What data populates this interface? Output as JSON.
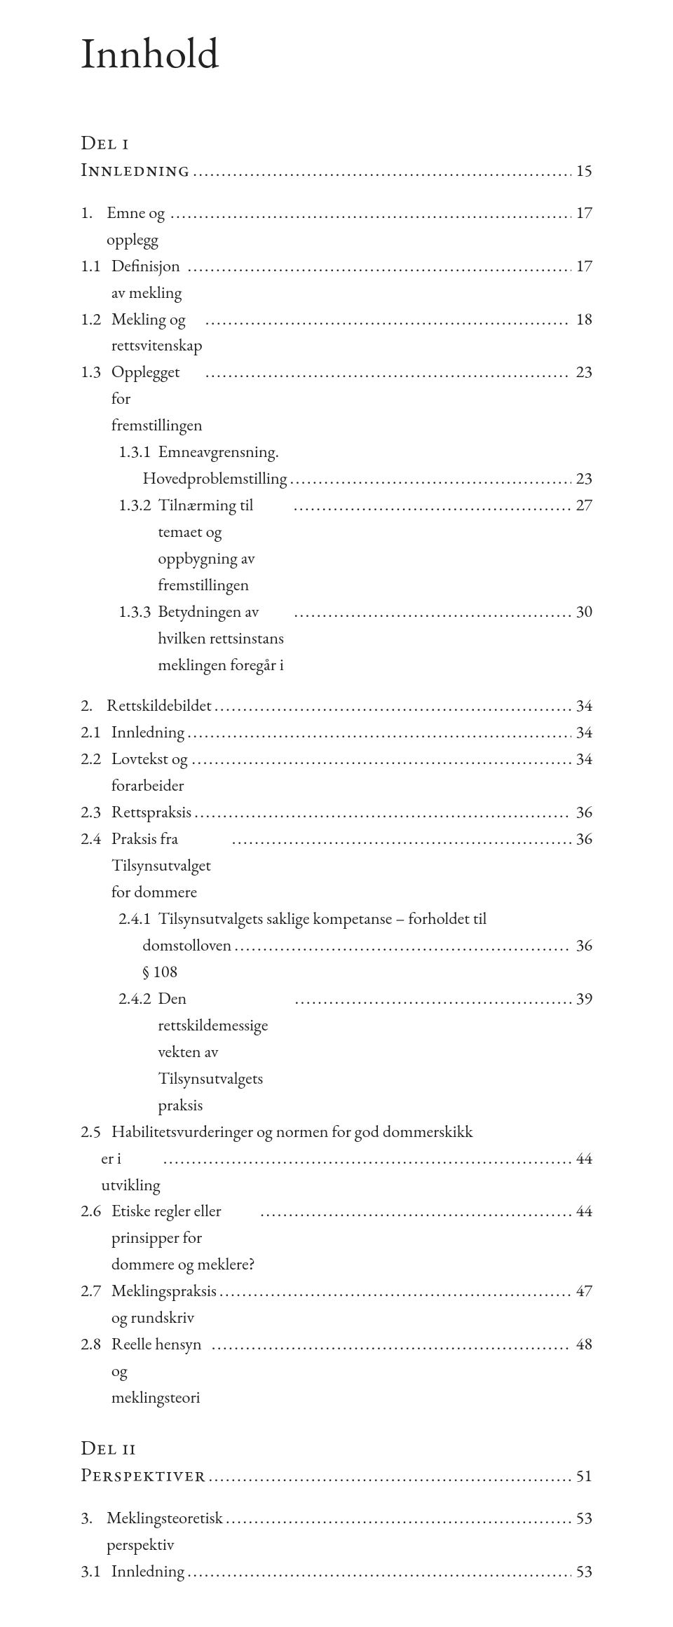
{
  "title": "Innhold",
  "indent": {
    "n0": 0,
    "n1": 0,
    "n2": 54,
    "n3": 108,
    "part": 0
  },
  "entries": [
    {
      "type": "part",
      "lines": [
        "Del i"
      ]
    },
    {
      "type": "toc",
      "level": 0,
      "smallcaps": true,
      "num": "",
      "text": "Innledning",
      "page": "15",
      "numpad": ""
    },
    {
      "type": "gap",
      "size": "md"
    },
    {
      "type": "toc",
      "level": 0,
      "num": "1.",
      "text": "Emne og opplegg",
      "page": "17",
      "numpad": "1.    "
    },
    {
      "type": "toc",
      "level": 0,
      "num": "1.1",
      "text": "Definisjon av mekling",
      "page": "17",
      "numpad": "1.1   "
    },
    {
      "type": "toc",
      "level": 0,
      "num": "1.2",
      "text": "Mekling og rettsvitenskap",
      "page": "18",
      "numpad": "1.2   "
    },
    {
      "type": "toc",
      "level": 0,
      "num": "1.3",
      "text": "Opplegget for fremstillingen",
      "page": "23",
      "numpad": "1.3   "
    },
    {
      "type": "toc-multi",
      "level": 1,
      "num": "1.3.1",
      "lines": [
        "Emneavgrensning.",
        "Hovedproblemstilling"
      ],
      "page": "23",
      "numpad": "1.3.1  "
    },
    {
      "type": "toc",
      "level": 1,
      "num": "1.3.2",
      "text": "Tilnærming til temaet og oppbygning av fremstillingen",
      "page": "27",
      "numpad": "1.3.2  "
    },
    {
      "type": "toc",
      "level": 1,
      "num": "1.3.3",
      "text": "Betydningen av hvilken rettsinstans meklingen foregår i",
      "page": "30",
      "numpad": "1.3.3  "
    },
    {
      "type": "gap",
      "size": "md"
    },
    {
      "type": "toc",
      "level": 0,
      "num": "2.",
      "text": "Rettskildebildet",
      "page": "34",
      "numpad": "2.    "
    },
    {
      "type": "toc",
      "level": 0,
      "num": "2.1",
      "text": "Innledning",
      "page": "34",
      "numpad": "2.1   "
    },
    {
      "type": "toc",
      "level": 0,
      "num": "2.2",
      "text": "Lovtekst og forarbeider",
      "page": "34",
      "numpad": "2.2   "
    },
    {
      "type": "toc",
      "level": 0,
      "num": "2.3",
      "text": "Rettspraksis",
      "page": "36",
      "numpad": "2.3   "
    },
    {
      "type": "toc",
      "level": 0,
      "num": "2.4",
      "text": "Praksis fra Tilsynsutvalget for dommere",
      "page": "36",
      "numpad": "2.4   "
    },
    {
      "type": "toc-multi",
      "level": 1,
      "num": "2.4.1",
      "lines": [
        "Tilsynsutvalgets saklige kompetanse – forholdet til",
        "domstolloven § 108"
      ],
      "page": "36",
      "numpad": "2.4.1  "
    },
    {
      "type": "toc",
      "level": 1,
      "num": "2.4.2",
      "text": "Den rettskildemessige vekten av Tilsynsutvalgets praksis",
      "page": "39",
      "numpad": "2.4.2  "
    },
    {
      "type": "toc-multi",
      "level": 0,
      "num": "2.5",
      "lines": [
        "Habilitetsvurderinger og normen for god dommerskikk",
        "er i utvikling"
      ],
      "page": "44",
      "numpad": "2.5   "
    },
    {
      "type": "toc",
      "level": 0,
      "num": "2.6",
      "text": "Etiske regler eller prinsipper for dommere og meklere?",
      "page": "44",
      "numpad": "2.6   "
    },
    {
      "type": "toc",
      "level": 0,
      "num": "2.7",
      "text": "Meklingspraksis og rundskriv",
      "page": "47",
      "numpad": "2.7   "
    },
    {
      "type": "toc",
      "level": 0,
      "num": "2.8",
      "text": "Reelle hensyn og meklingsteori",
      "page": "48",
      "numpad": "2.8   "
    },
    {
      "type": "gap",
      "size": "lg"
    },
    {
      "type": "part",
      "lines": [
        "Del ii"
      ]
    },
    {
      "type": "toc",
      "level": 0,
      "smallcaps": true,
      "num": "",
      "text": "Perspektiver",
      "page": "51",
      "numpad": ""
    },
    {
      "type": "gap",
      "size": "md"
    },
    {
      "type": "toc",
      "level": 0,
      "num": "3.",
      "text": "Meklingsteoretisk perspektiv",
      "page": "53",
      "numpad": "3.    "
    },
    {
      "type": "toc",
      "level": 0,
      "num": "3.1",
      "text": "Innledning",
      "page": "53",
      "numpad": "3.1   "
    }
  ]
}
